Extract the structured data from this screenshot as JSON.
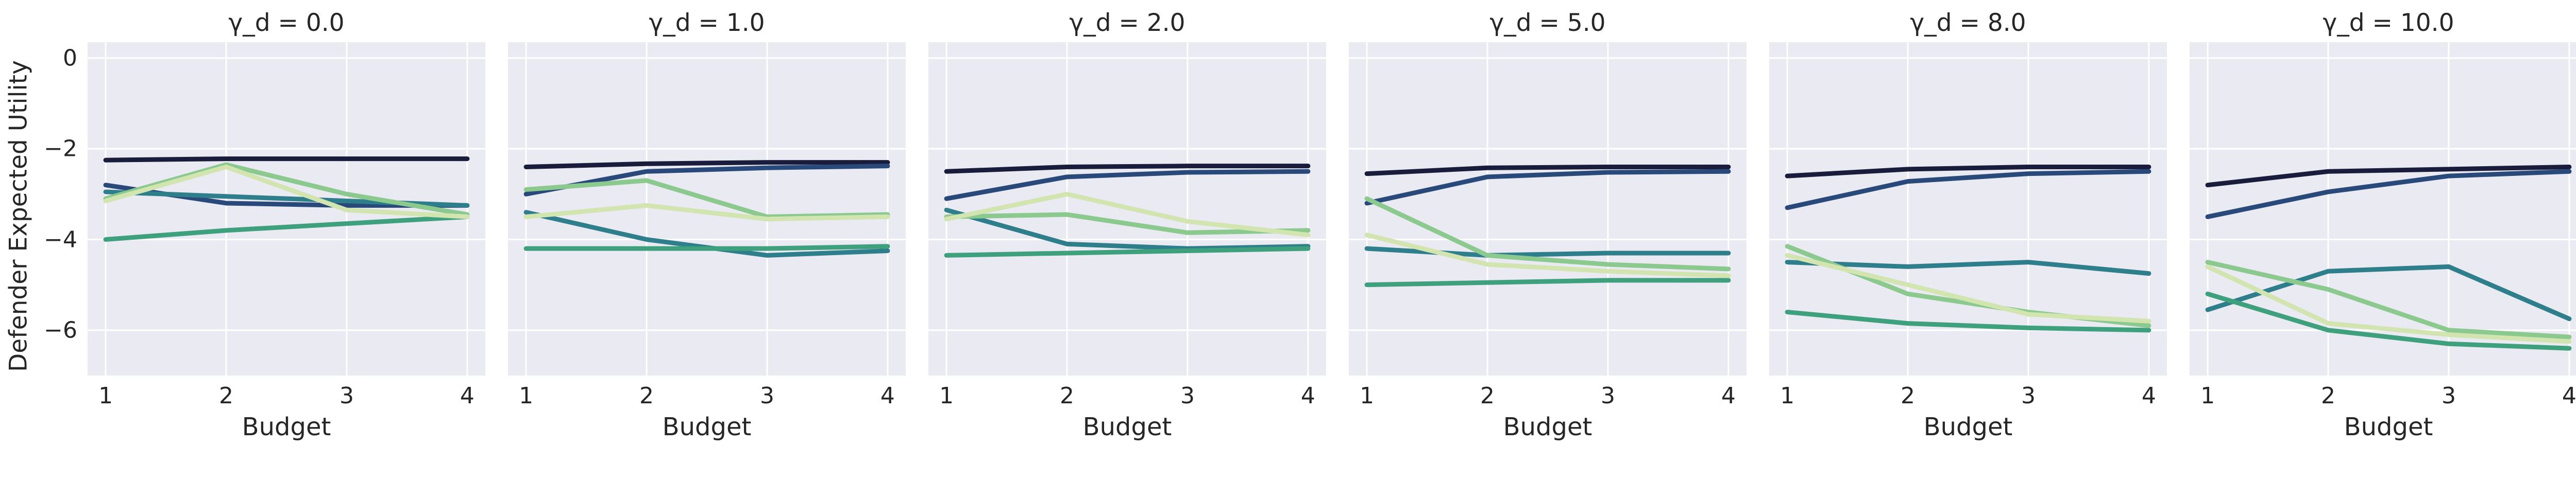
{
  "chart_data": {
    "type": "line",
    "xlabel": "Budget",
    "ylabel": "Defender Expected Utility",
    "x": [
      1,
      2,
      3,
      4
    ],
    "xticks": [
      "1",
      "2",
      "3",
      "4"
    ],
    "xtick_values": [
      1,
      2,
      3,
      4
    ],
    "yticks": [
      "0",
      "−2",
      "−4",
      "−6"
    ],
    "ytick_values": [
      0,
      -2,
      -4,
      -6
    ],
    "xlim": [
      0.85,
      4.15
    ],
    "ylim": [
      -7.0,
      0.35
    ],
    "grid": true,
    "grid_color": "#ffffff",
    "panel_background": "#eaeaf2",
    "legend": "none",
    "series_colors": [
      "#1a1c3c",
      "#29497b",
      "#2e7e8c",
      "#3fa07e",
      "#8bc98e",
      "#d2e5b0"
    ],
    "panels": [
      {
        "title": "γ_d = 0.0",
        "series": [
          {
            "color": "#1a1c3c",
            "values": [
              -2.25,
              -2.22,
              -2.22,
              -2.22
            ]
          },
          {
            "color": "#29497b",
            "values": [
              -2.8,
              -3.2,
              -3.25,
              -3.25
            ]
          },
          {
            "color": "#2e7e8c",
            "values": [
              -2.95,
              -3.05,
              -3.15,
              -3.25
            ]
          },
          {
            "color": "#3fa07e",
            "values": [
              -4.0,
              -3.8,
              -3.65,
              -3.5
            ]
          },
          {
            "color": "#8bc98e",
            "values": [
              -3.1,
              -2.35,
              -3.0,
              -3.45
            ]
          },
          {
            "color": "#d2e5b0",
            "values": [
              -3.15,
              -2.4,
              -3.35,
              -3.5
            ]
          }
        ]
      },
      {
        "title": "γ_d = 1.0",
        "series": [
          {
            "color": "#1a1c3c",
            "values": [
              -2.4,
              -2.33,
              -2.3,
              -2.3
            ]
          },
          {
            "color": "#29497b",
            "values": [
              -3.0,
              -2.5,
              -2.42,
              -2.38
            ]
          },
          {
            "color": "#2e7e8c",
            "values": [
              -3.4,
              -4.0,
              -4.35,
              -4.25
            ]
          },
          {
            "color": "#3fa07e",
            "values": [
              -4.2,
              -4.2,
              -4.2,
              -4.15
            ]
          },
          {
            "color": "#8bc98e",
            "values": [
              -2.9,
              -2.7,
              -3.5,
              -3.45
            ]
          },
          {
            "color": "#d2e5b0",
            "values": [
              -3.5,
              -3.25,
              -3.55,
              -3.5
            ]
          }
        ]
      },
      {
        "title": "γ_d = 2.0",
        "series": [
          {
            "color": "#1a1c3c",
            "values": [
              -2.5,
              -2.4,
              -2.38,
              -2.38
            ]
          },
          {
            "color": "#29497b",
            "values": [
              -3.1,
              -2.62,
              -2.52,
              -2.5
            ]
          },
          {
            "color": "#2e7e8c",
            "values": [
              -3.35,
              -4.1,
              -4.2,
              -4.15
            ]
          },
          {
            "color": "#3fa07e",
            "values": [
              -4.35,
              -4.3,
              -4.25,
              -4.2
            ]
          },
          {
            "color": "#8bc98e",
            "values": [
              -3.5,
              -3.45,
              -3.85,
              -3.8
            ]
          },
          {
            "color": "#d2e5b0",
            "values": [
              -3.55,
              -3.0,
              -3.6,
              -3.9
            ]
          }
        ]
      },
      {
        "title": "γ_d = 5.0",
        "series": [
          {
            "color": "#1a1c3c",
            "values": [
              -2.55,
              -2.42,
              -2.4,
              -2.4
            ]
          },
          {
            "color": "#29497b",
            "values": [
              -3.2,
              -2.62,
              -2.52,
              -2.5
            ]
          },
          {
            "color": "#2e7e8c",
            "values": [
              -4.2,
              -4.35,
              -4.3,
              -4.3
            ]
          },
          {
            "color": "#3fa07e",
            "values": [
              -5.0,
              -4.95,
              -4.9,
              -4.9
            ]
          },
          {
            "color": "#8bc98e",
            "values": [
              -3.1,
              -4.35,
              -4.55,
              -4.65
            ]
          },
          {
            "color": "#d2e5b0",
            "values": [
              -3.9,
              -4.55,
              -4.7,
              -4.8
            ]
          }
        ]
      },
      {
        "title": "γ_d = 8.0",
        "series": [
          {
            "color": "#1a1c3c",
            "values": [
              -2.6,
              -2.45,
              -2.4,
              -2.4
            ]
          },
          {
            "color": "#29497b",
            "values": [
              -3.3,
              -2.72,
              -2.55,
              -2.5
            ]
          },
          {
            "color": "#2e7e8c",
            "values": [
              -4.5,
              -4.6,
              -4.5,
              -4.75
            ]
          },
          {
            "color": "#3fa07e",
            "values": [
              -5.6,
              -5.85,
              -5.95,
              -6.0
            ]
          },
          {
            "color": "#8bc98e",
            "values": [
              -4.15,
              -5.2,
              -5.6,
              -5.9
            ]
          },
          {
            "color": "#d2e5b0",
            "values": [
              -4.35,
              -5.0,
              -5.65,
              -5.8
            ]
          }
        ]
      },
      {
        "title": "γ_d = 10.0",
        "series": [
          {
            "color": "#1a1c3c",
            "values": [
              -2.8,
              -2.5,
              -2.45,
              -2.4
            ]
          },
          {
            "color": "#29497b",
            "values": [
              -3.5,
              -2.95,
              -2.6,
              -2.5
            ]
          },
          {
            "color": "#2e7e8c",
            "values": [
              -5.55,
              -4.7,
              -4.6,
              -5.75
            ]
          },
          {
            "color": "#3fa07e",
            "values": [
              -5.2,
              -6.0,
              -6.3,
              -6.4
            ]
          },
          {
            "color": "#8bc98e",
            "values": [
              -4.5,
              -5.1,
              -6.0,
              -6.15
            ]
          },
          {
            "color": "#d2e5b0",
            "values": [
              -4.6,
              -5.85,
              -6.1,
              -6.25
            ]
          }
        ]
      }
    ]
  }
}
